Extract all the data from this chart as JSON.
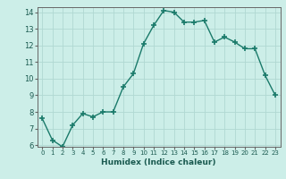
{
  "x": [
    0,
    1,
    2,
    3,
    4,
    5,
    6,
    7,
    8,
    9,
    10,
    11,
    12,
    13,
    14,
    15,
    16,
    17,
    18,
    19,
    20,
    21,
    22,
    23
  ],
  "y": [
    7.6,
    6.3,
    5.9,
    7.2,
    7.9,
    7.7,
    8.0,
    8.0,
    9.5,
    10.3,
    12.1,
    13.2,
    14.1,
    14.0,
    13.4,
    13.4,
    13.5,
    12.2,
    12.5,
    12.2,
    11.8,
    11.8,
    10.2,
    9.0
  ],
  "xlabel": "Humidex (Indice chaleur)",
  "ylim": [
    6,
    14
  ],
  "xlim": [
    -0.5,
    23.5
  ],
  "yticks": [
    6,
    7,
    8,
    9,
    10,
    11,
    12,
    13,
    14
  ],
  "xticks": [
    0,
    1,
    2,
    3,
    4,
    5,
    6,
    7,
    8,
    9,
    10,
    11,
    12,
    13,
    14,
    15,
    16,
    17,
    18,
    19,
    20,
    21,
    22,
    23
  ],
  "line_color": "#1a7a6a",
  "marker_color": "#1a7a6a",
  "bg_color": "#cceee8",
  "grid_color": "#b0d8d2",
  "axis_color": "#666666"
}
